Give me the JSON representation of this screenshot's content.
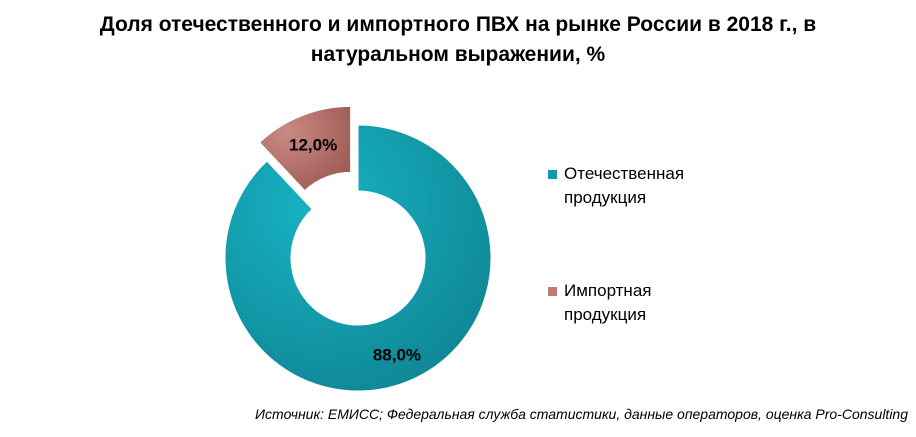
{
  "title_lines": [
    "Доля отечественного и импортного ПВХ на рынке России в 2018 г., в",
    "натуральном выражении, %"
  ],
  "source": "Источник: ЕМИСС; Федеральная служба статистики, данные операторов, оценка Pro-Consulting",
  "chart_data": {
    "type": "pie",
    "variant": "doughnut",
    "title": "Доля отечественного и импортного ПВХ на рынке России в 2018 г., в натуральном выражении, %",
    "categories": [
      "Отечественная продукция",
      "Импортная продукция"
    ],
    "values": [
      88.0,
      12.0
    ],
    "data_labels": [
      "88,0%",
      "12,0%"
    ],
    "colors": [
      "#1497A8",
      "#B86F6A"
    ],
    "exploded": [
      false,
      true
    ],
    "legend": {
      "position": "right",
      "items": [
        {
          "lines": [
            "Отечественная",
            "продукция"
          ],
          "color": "#1497A8"
        },
        {
          "lines": [
            "Импортная",
            "продукция"
          ],
          "color": "#C47A74"
        }
      ]
    }
  }
}
